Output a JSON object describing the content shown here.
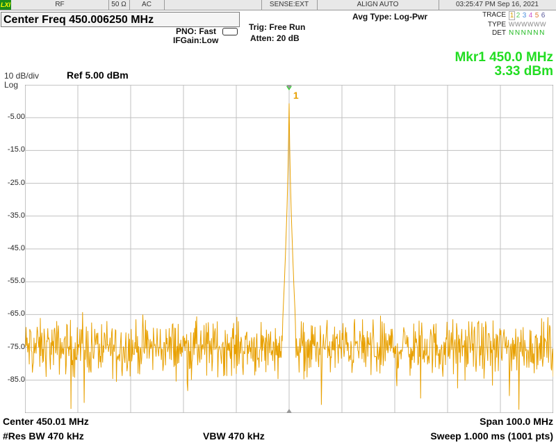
{
  "status_bar": {
    "lxi": "LXI",
    "rf": "RF",
    "impedance": "50 Ω",
    "coupling": "AC",
    "sense": "SENSE:EXT",
    "align": "ALIGN AUTO",
    "datetime": "03:25:47 PM Sep 16, 2021"
  },
  "header": {
    "center_freq_title": "Center Freq 450.006250 MHz",
    "pno": "PNO: Fast",
    "ifgain": "IFGain:Low",
    "trig": "Trig: Free Run",
    "atten": "Atten: 20 dB",
    "avg_type": "Avg Type: Log-Pwr"
  },
  "trace_panel": {
    "trace_label": "TRACE",
    "type_label": "TYPE",
    "det_label": "DET",
    "numbers": [
      "1",
      "2",
      "3",
      "4",
      "5",
      "6"
    ],
    "number_colors": [
      "#d9a000",
      "#55cc55",
      "#4a90e0",
      "#cc55cc",
      "#e07a30",
      "#555599"
    ],
    "type_values": "WWWWWW",
    "det_values": "NNNNNN"
  },
  "marker": {
    "line1": "Mkr1 450.0 MHz",
    "line2": "3.33 dBm",
    "label": "1",
    "frequency_mhz": 450.0,
    "level_dbm": 3.33
  },
  "scale": {
    "div": "10 dB/div",
    "ref": "Ref 5.00 dBm",
    "log": "Log",
    "y_ticks": [
      "-5.00",
      "-15.0",
      "-25.0",
      "-35.0",
      "-45.0",
      "-55.0",
      "-65.0",
      "-75.0",
      "-85.0"
    ]
  },
  "footer": {
    "center": "Center 450.01 MHz",
    "span": "Span 100.0 MHz",
    "rbw": "#Res BW 470 kHz",
    "vbw": "VBW 470 kHz",
    "sweep": "Sweep  1.000 ms (1001 pts)"
  },
  "colors": {
    "trace": "#e8a000",
    "marker": "#22dd22",
    "grid": "#c0c0c0"
  },
  "chart_data": {
    "type": "line",
    "x_unit": "MHz",
    "y_unit": "dBm",
    "xlim": [
      400.01,
      500.01
    ],
    "ylim": [
      -95,
      5
    ],
    "grid": true,
    "series": [
      {
        "noise_floor_db": -75,
        "noise_spread_db": 10,
        "peak": {
          "x": 450.0,
          "y": 3.33
        }
      }
    ]
  }
}
